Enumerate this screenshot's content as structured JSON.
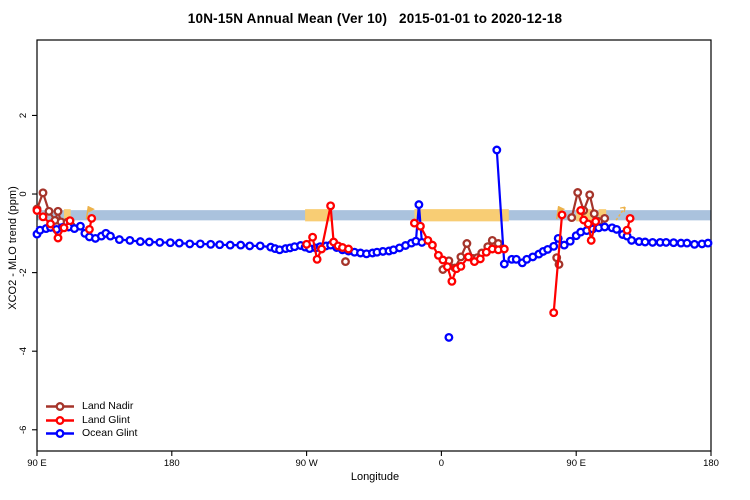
{
  "chart_data": {
    "type": "line",
    "title": "10N-15N Annual Mean (Ver 10)   2015-01-01 to 2020-12-18",
    "xlabel": "Longitude",
    "ylabel": "XCO2 - MLO trend (ppm)",
    "x_axis": {
      "range_deg": [
        0,
        450
      ],
      "ticks_deg": [
        0,
        90,
        180,
        270,
        360,
        450
      ],
      "tick_labels": [
        "90 E",
        "180",
        "90 W",
        "0",
        "90 E",
        "180"
      ]
    },
    "y_axis": {
      "range": [
        -6.54,
        3.92
      ],
      "ticks": [
        2,
        0,
        -2,
        -4,
        -6
      ],
      "tick_labels": [
        "2",
        "0",
        "-2",
        "-4",
        "-6"
      ]
    },
    "grid": "off",
    "legend_position": "bottom-left",
    "band": {
      "color": "#aac2dd",
      "highlight_color": "#f8cd74",
      "mark_color": "#edb24a",
      "y_top": -0.41,
      "y_bottom": -0.67,
      "x_from": 0,
      "x_to": 450,
      "highlight_segments_deg": [
        [
          18,
          22.5
        ],
        [
          179,
          197
        ],
        [
          252,
          315
        ],
        [
          360,
          370.5
        ],
        [
          375,
          380
        ]
      ],
      "marks": [
        {
          "deg": 33,
          "type": "flag"
        },
        {
          "deg": 347,
          "type": "flag"
        },
        {
          "deg": 390,
          "type": "arrow"
        }
      ]
    },
    "series": [
      {
        "name": "Land Nadir",
        "color": "#a5342a",
        "segments": [
          [
            [
              0,
              -0.38
            ],
            [
              4,
              0.03
            ],
            [
              8,
              -0.44
            ],
            [
              12,
              -0.67
            ],
            [
              14,
              -0.44
            ],
            [
              16,
              -0.71
            ],
            [
              20,
              -0.72
            ],
            [
              23,
              -0.82
            ]
          ],
          [
            [
              206,
              -1.72
            ]
          ],
          [
            [
              271,
              -1.92
            ],
            [
              275,
              -1.7
            ],
            [
              279,
              -1.88
            ],
            [
              283,
              -1.6
            ],
            [
              287,
              -1.26
            ],
            [
              291,
              -1.64
            ],
            [
              294,
              -1.62
            ],
            [
              297,
              -1.5
            ],
            [
              301,
              -1.34
            ],
            [
              304,
              -1.18
            ],
            [
              308,
              -1.26
            ]
          ],
          [
            [
              347,
              -1.62
            ],
            [
              348.5,
              -1.79
            ]
          ],
          [
            [
              357,
              -0.6
            ],
            [
              361,
              0.04
            ],
            [
              365,
              -0.42
            ],
            [
              369,
              -0.02
            ],
            [
              372,
              -0.5
            ],
            [
              375,
              -0.7
            ],
            [
              379,
              -0.62
            ]
          ]
        ]
      },
      {
        "name": "Land Glint",
        "color": "#ff0000",
        "segments": [
          [
            [
              0,
              -0.42
            ],
            [
              4,
              -0.58
            ],
            [
              9,
              -0.76
            ],
            [
              14,
              -1.12
            ],
            [
              18,
              -0.86
            ],
            [
              22,
              -0.68
            ]
          ],
          [
            [
              35,
              -0.9
            ],
            [
              36.5,
              -0.62
            ]
          ],
          [
            [
              180,
              -1.28
            ],
            [
              184,
              -1.1
            ],
            [
              187,
              -1.66
            ],
            [
              190,
              -1.4
            ],
            [
              196,
              -0.3
            ],
            [
              198,
              -1.22
            ],
            [
              201,
              -1.32
            ],
            [
              204,
              -1.36
            ],
            [
              208,
              -1.4
            ]
          ],
          [
            [
              252,
              -0.74
            ],
            [
              256,
              -0.82
            ],
            [
              261,
              -1.18
            ],
            [
              264,
              -1.3
            ],
            [
              268,
              -1.56
            ],
            [
              271,
              -1.68
            ],
            [
              274,
              -1.85
            ],
            [
              277,
              -2.22
            ],
            [
              280,
              -1.9
            ],
            [
              283,
              -1.84
            ],
            [
              288,
              -1.6
            ],
            [
              292,
              -1.72
            ],
            [
              296,
              -1.65
            ],
            [
              300,
              -1.48
            ],
            [
              304,
              -1.4
            ],
            [
              308,
              -1.42
            ],
            [
              312,
              -1.4
            ]
          ],
          [
            [
              345,
              -3.02
            ],
            [
              350.5,
              -0.53
            ]
          ],
          [
            [
              363,
              -0.42
            ],
            [
              365,
              -0.66
            ],
            [
              368,
              -0.76
            ],
            [
              370,
              -1.18
            ],
            [
              373,
              -0.7
            ]
          ],
          [
            [
              394,
              -0.92
            ],
            [
              396,
              -0.62
            ]
          ]
        ]
      },
      {
        "name": "Ocean Glint",
        "color": "#0000ff",
        "segments": [
          [
            [
              0,
              -1.02
            ],
            [
              2,
              -0.92
            ],
            [
              6,
              -0.88
            ],
            [
              9,
              -0.85
            ],
            [
              13,
              -0.9
            ],
            [
              17,
              -0.85
            ],
            [
              21,
              -0.84
            ],
            [
              25,
              -0.88
            ],
            [
              29,
              -0.82
            ],
            [
              32,
              -1.0
            ],
            [
              35,
              -1.09
            ],
            [
              39,
              -1.13
            ],
            [
              43,
              -1.07
            ],
            [
              46,
              -1.0
            ],
            [
              49,
              -1.07
            ],
            [
              55,
              -1.16
            ],
            [
              62,
              -1.18
            ],
            [
              69,
              -1.21
            ],
            [
              75,
              -1.22
            ],
            [
              82,
              -1.23
            ],
            [
              89,
              -1.24
            ],
            [
              95,
              -1.25
            ],
            [
              102,
              -1.27
            ],
            [
              109,
              -1.27
            ],
            [
              116,
              -1.28
            ],
            [
              122,
              -1.29
            ],
            [
              129,
              -1.3
            ],
            [
              136,
              -1.3
            ],
            [
              142,
              -1.32
            ],
            [
              149,
              -1.32
            ],
            [
              156,
              -1.35
            ],
            [
              159,
              -1.39
            ],
            [
              162,
              -1.42
            ],
            [
              166,
              -1.39
            ],
            [
              169,
              -1.37
            ],
            [
              172,
              -1.34
            ],
            [
              176,
              -1.31
            ],
            [
              179,
              -1.35
            ],
            [
              182,
              -1.39
            ],
            [
              186,
              -1.37
            ],
            [
              189,
              -1.34
            ],
            [
              193,
              -1.32
            ],
            [
              196,
              -1.3
            ],
            [
              200,
              -1.36
            ],
            [
              204,
              -1.42
            ],
            [
              208,
              -1.45
            ],
            [
              212,
              -1.48
            ],
            [
              216,
              -1.5
            ],
            [
              220,
              -1.52
            ],
            [
              224,
              -1.5
            ],
            [
              227,
              -1.48
            ],
            [
              231,
              -1.46
            ],
            [
              235,
              -1.45
            ],
            [
              238,
              -1.42
            ],
            [
              242,
              -1.37
            ],
            [
              246,
              -1.31
            ],
            [
              250,
              -1.25
            ],
            [
              253,
              -1.2
            ],
            [
              255,
              -0.27
            ],
            [
              257,
              -1.23
            ]
          ],
          [
            [
              275,
              -3.65
            ]
          ],
          [
            [
              307,
              1.12
            ],
            [
              312,
              -1.78
            ],
            [
              317,
              -1.66
            ],
            [
              320,
              -1.66
            ],
            [
              324,
              -1.75
            ],
            [
              327,
              -1.66
            ],
            [
              331,
              -1.6
            ],
            [
              335,
              -1.53
            ],
            [
              338,
              -1.46
            ],
            [
              341,
              -1.41
            ],
            [
              345,
              -1.33
            ],
            [
              348,
              -1.13
            ],
            [
              352,
              -1.3
            ],
            [
              356,
              -1.2
            ],
            [
              360,
              -1.06
            ],
            [
              363,
              -0.97
            ],
            [
              367,
              -0.93
            ],
            [
              371,
              -0.89
            ],
            [
              375,
              -0.86
            ],
            [
              379,
              -0.84
            ],
            [
              384,
              -0.86
            ],
            [
              387,
              -0.9
            ],
            [
              391,
              -1.03
            ],
            [
              394,
              -1.07
            ],
            [
              397,
              -1.18
            ],
            [
              402,
              -1.21
            ],
            [
              406,
              -1.22
            ],
            [
              411,
              -1.23
            ],
            [
              416,
              -1.23
            ],
            [
              420,
              -1.23
            ],
            [
              425,
              -1.24
            ],
            [
              430,
              -1.25
            ],
            [
              434,
              -1.25
            ],
            [
              439,
              -1.28
            ],
            [
              444,
              -1.27
            ],
            [
              448,
              -1.25
            ]
          ]
        ]
      }
    ],
    "z_order": [
      0,
      2,
      1
    ]
  }
}
